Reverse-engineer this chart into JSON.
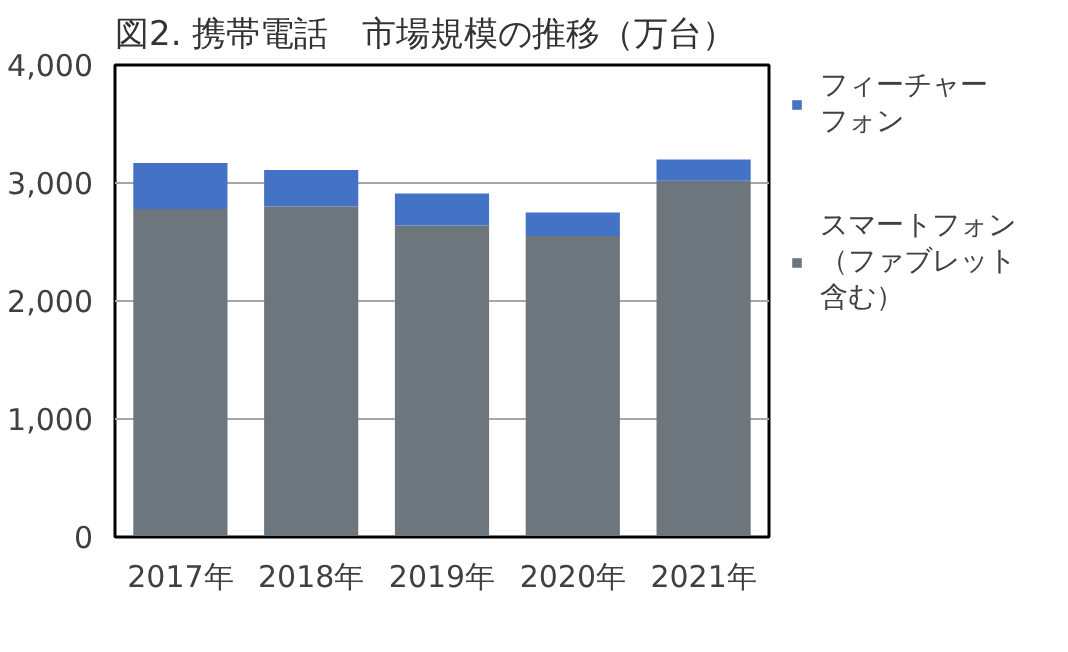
{
  "chart_data": {
    "type": "bar",
    "stacked": true,
    "title": "図2. 携帯電話　市場規模の推移（万台）",
    "categories": [
      "2017年",
      "2018年",
      "2019年",
      "2020年",
      "2021年"
    ],
    "series": [
      {
        "name": "スマートフォン（ファブレット含む）",
        "color": "#6c767c",
        "values": [
          2780,
          2800,
          2640,
          2550,
          3020
        ]
      },
      {
        "name": "フィーチャーフォン",
        "color": "#4472c4",
        "values": [
          390,
          310,
          270,
          200,
          180
        ]
      }
    ],
    "ylim": [
      0,
      4000
    ],
    "yticks": [
      {
        "value": 0,
        "label": "0"
      },
      {
        "value": 1000,
        "label": "1,000"
      },
      {
        "value": 2000,
        "label": "2,000"
      },
      {
        "value": 3000,
        "label": "3,000"
      },
      {
        "value": 4000,
        "label": "4,000"
      }
    ],
    "grid": "y",
    "legend": "right"
  }
}
